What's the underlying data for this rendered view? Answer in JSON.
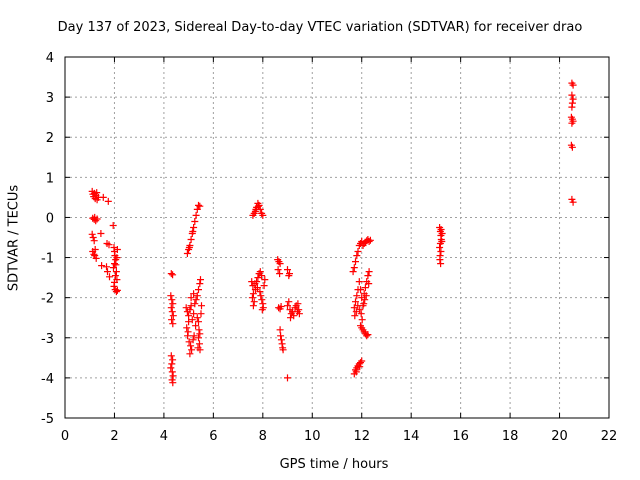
{
  "chart_data": {
    "type": "scatter",
    "title": "Day 137 of 2023, Sidereal Day-to-day VTEC variation (SDTVAR) for receiver drao",
    "xlabel": "GPS time / hours",
    "ylabel": "SDTVAR / TECUs",
    "xlim": [
      0,
      22
    ],
    "ylim": [
      -5,
      4
    ],
    "xticks": [
      "0",
      "2",
      "4",
      "6",
      "8",
      "10",
      "12",
      "14",
      "16",
      "18",
      "20",
      "22"
    ],
    "yticks": [
      "-5",
      "-4",
      "-3",
      "-2",
      "-1",
      "0",
      "1",
      "2",
      "3",
      "4"
    ],
    "grid": true,
    "marker": "+",
    "color": "#ff0000",
    "series": [
      {
        "name": "SDTVAR",
        "points": [
          [
            1.1,
            0.65
          ],
          [
            1.13,
            0.58
          ],
          [
            1.16,
            0.52
          ],
          [
            1.19,
            0.6
          ],
          [
            1.22,
            0.47
          ],
          [
            1.25,
            0.55
          ],
          [
            1.28,
            0.62
          ],
          [
            1.3,
            0.44
          ],
          [
            1.35,
            0.5
          ],
          [
            1.12,
            -0.02
          ],
          [
            1.18,
            -0.05
          ],
          [
            1.24,
            -0.08
          ],
          [
            1.3,
            -0.04
          ],
          [
            1.2,
            0.0
          ],
          [
            1.1,
            -0.42
          ],
          [
            1.14,
            -0.5
          ],
          [
            1.18,
            -0.58
          ],
          [
            1.12,
            -0.85
          ],
          [
            1.17,
            -0.92
          ],
          [
            1.22,
            -0.8
          ],
          [
            1.26,
            -1.02
          ],
          [
            1.2,
            -0.95
          ],
          [
            1.45,
            -0.4
          ],
          [
            1.55,
            0.5
          ],
          [
            1.48,
            -1.2
          ],
          [
            1.68,
            -1.23
          ],
          [
            1.75,
            0.4
          ],
          [
            1.7,
            -0.65
          ],
          [
            1.78,
            -0.68
          ],
          [
            1.72,
            -1.35
          ],
          [
            1.8,
            -1.48
          ],
          [
            1.95,
            -0.2
          ],
          [
            1.98,
            -0.75
          ],
          [
            2.0,
            -0.85
          ],
          [
            2.02,
            -0.95
          ],
          [
            2.05,
            -1.05
          ],
          [
            2.0,
            -1.15
          ],
          [
            1.96,
            -1.25
          ],
          [
            2.08,
            -1.35
          ],
          [
            2.04,
            -1.45
          ],
          [
            2.1,
            -1.55
          ],
          [
            2.0,
            -1.62
          ],
          [
            1.98,
            -1.72
          ],
          [
            2.03,
            -1.8
          ],
          [
            2.08,
            -1.85
          ],
          [
            2.12,
            -1.82
          ],
          [
            2.06,
            -1.18
          ],
          [
            2.1,
            -1.0
          ],
          [
            2.12,
            -0.8
          ],
          [
            4.3,
            -1.4
          ],
          [
            4.35,
            -1.43
          ],
          [
            4.28,
            -1.95
          ],
          [
            4.32,
            -2.05
          ],
          [
            4.36,
            -2.15
          ],
          [
            4.3,
            -2.25
          ],
          [
            4.34,
            -2.35
          ],
          [
            4.38,
            -2.45
          ],
          [
            4.31,
            -2.55
          ],
          [
            4.36,
            -2.65
          ],
          [
            4.3,
            -3.45
          ],
          [
            4.35,
            -3.55
          ],
          [
            4.32,
            -3.65
          ],
          [
            4.28,
            -3.75
          ],
          [
            4.34,
            -3.85
          ],
          [
            4.37,
            -3.95
          ],
          [
            4.33,
            -4.05
          ],
          [
            4.36,
            -4.12
          ],
          [
            4.95,
            -0.9
          ],
          [
            5.0,
            -0.8
          ],
          [
            5.05,
            -0.7
          ],
          [
            5.1,
            -0.55
          ],
          [
            5.15,
            -0.4
          ],
          [
            5.2,
            -0.25
          ],
          [
            5.25,
            -0.1
          ],
          [
            5.3,
            0.05
          ],
          [
            5.35,
            0.2
          ],
          [
            5.4,
            0.3
          ],
          [
            5.45,
            0.28
          ],
          [
            5.03,
            -0.75
          ],
          [
            5.17,
            -0.35
          ],
          [
            4.9,
            -2.25
          ],
          [
            4.95,
            -2.35
          ],
          [
            5.0,
            -2.45
          ],
          [
            5.05,
            -2.3
          ],
          [
            5.1,
            -2.2
          ],
          [
            5.15,
            -2.55
          ],
          [
            5.2,
            -2.4
          ],
          [
            5.25,
            -2.15
          ],
          [
            5.3,
            -2.05
          ],
          [
            5.35,
            -1.95
          ],
          [
            5.4,
            -1.8
          ],
          [
            5.45,
            -1.65
          ],
          [
            5.48,
            -1.55
          ],
          [
            4.92,
            -2.75
          ],
          [
            4.98,
            -2.85
          ],
          [
            5.02,
            -3.1
          ],
          [
            5.08,
            -3.2
          ],
          [
            5.12,
            -3.3
          ],
          [
            5.05,
            -3.4
          ],
          [
            5.18,
            -3.05
          ],
          [
            5.22,
            -2.95
          ],
          [
            5.28,
            -2.7
          ],
          [
            5.35,
            -2.5
          ],
          [
            5.4,
            -2.6
          ],
          [
            5.42,
            -2.8
          ],
          [
            5.45,
            -2.9
          ],
          [
            5.4,
            -3.0
          ],
          [
            5.44,
            -3.15
          ],
          [
            5.46,
            -3.3
          ],
          [
            5.38,
            -3.25
          ],
          [
            5.5,
            -2.4
          ],
          [
            5.52,
            -2.2
          ],
          [
            5.1,
            -2.0
          ],
          [
            5.2,
            -1.9
          ],
          [
            5.0,
            -2.6
          ],
          [
            4.96,
            -2.95
          ],
          [
            7.6,
            0.05
          ],
          [
            7.65,
            0.1
          ],
          [
            7.7,
            0.15
          ],
          [
            7.75,
            0.25
          ],
          [
            7.8,
            0.35
          ],
          [
            7.85,
            0.3
          ],
          [
            7.9,
            0.2
          ],
          [
            7.95,
            0.1
          ],
          [
            8.0,
            0.05
          ],
          [
            7.82,
            0.28
          ],
          [
            7.72,
            0.2
          ],
          [
            7.55,
            -1.6
          ],
          [
            7.6,
            -1.7
          ],
          [
            7.62,
            -1.9
          ],
          [
            7.58,
            -2.0
          ],
          [
            7.65,
            -2.1
          ],
          [
            7.7,
            -1.8
          ],
          [
            7.75,
            -1.6
          ],
          [
            7.8,
            -1.5
          ],
          [
            7.85,
            -1.4
          ],
          [
            7.9,
            -1.35
          ],
          [
            7.95,
            -1.45
          ],
          [
            7.78,
            -1.75
          ],
          [
            7.88,
            -1.85
          ],
          [
            7.92,
            -1.95
          ],
          [
            7.96,
            -2.05
          ],
          [
            8.0,
            -2.15
          ],
          [
            8.02,
            -2.25
          ],
          [
            7.98,
            -2.3
          ],
          [
            8.05,
            -1.7
          ],
          [
            8.08,
            -1.55
          ],
          [
            7.68,
            -1.65
          ],
          [
            7.62,
            -2.2
          ],
          [
            8.6,
            -1.05
          ],
          [
            8.65,
            -1.1
          ],
          [
            8.62,
            -1.3
          ],
          [
            8.68,
            -1.4
          ],
          [
            8.7,
            -1.15
          ],
          [
            8.64,
            -2.25
          ],
          [
            8.7,
            -2.28
          ],
          [
            8.74,
            -2.22
          ],
          [
            8.7,
            -2.8
          ],
          [
            8.72,
            -2.95
          ],
          [
            8.75,
            -3.05
          ],
          [
            8.78,
            -3.15
          ],
          [
            8.8,
            -3.25
          ],
          [
            8.82,
            -3.3
          ],
          [
            9.0,
            -1.3
          ],
          [
            9.05,
            -1.45
          ],
          [
            9.08,
            -1.4
          ],
          [
            9.0,
            -2.2
          ],
          [
            9.05,
            -2.1
          ],
          [
            9.1,
            -2.3
          ],
          [
            9.15,
            -2.4
          ],
          [
            9.2,
            -2.35
          ],
          [
            9.25,
            -2.45
          ],
          [
            9.3,
            -2.25
          ],
          [
            9.35,
            -2.2
          ],
          [
            9.4,
            -2.35
          ],
          [
            9.45,
            -2.3
          ],
          [
            9.42,
            -2.15
          ],
          [
            9.48,
            -2.4
          ],
          [
            9.12,
            -2.5
          ],
          [
            9.0,
            -4.0
          ],
          [
            11.65,
            -1.35
          ],
          [
            11.7,
            -1.25
          ],
          [
            11.75,
            -1.1
          ],
          [
            11.8,
            -0.95
          ],
          [
            11.85,
            -0.85
          ],
          [
            11.9,
            -0.7
          ],
          [
            11.95,
            -0.65
          ],
          [
            12.0,
            -0.6
          ],
          [
            12.05,
            -0.7
          ],
          [
            12.1,
            -0.65
          ],
          [
            12.15,
            -0.62
          ],
          [
            12.2,
            -0.58
          ],
          [
            12.25,
            -0.55
          ],
          [
            12.3,
            -0.6
          ],
          [
            12.35,
            -0.57
          ],
          [
            11.7,
            -2.25
          ],
          [
            11.75,
            -2.1
          ],
          [
            11.8,
            -1.95
          ],
          [
            11.85,
            -1.8
          ],
          [
            11.9,
            -1.6
          ],
          [
            11.95,
            -1.8
          ],
          [
            12.0,
            -2.0
          ],
          [
            12.05,
            -2.2
          ],
          [
            11.72,
            -2.45
          ],
          [
            11.78,
            -2.35
          ],
          [
            11.84,
            -2.2
          ],
          [
            11.92,
            -2.3
          ],
          [
            11.98,
            -2.4
          ],
          [
            12.1,
            -1.9
          ],
          [
            12.15,
            -1.75
          ],
          [
            12.2,
            -1.6
          ],
          [
            12.25,
            -1.45
          ],
          [
            12.3,
            -1.35
          ],
          [
            12.08,
            -2.15
          ],
          [
            12.18,
            -1.95
          ],
          [
            12.28,
            -1.65
          ],
          [
            12.02,
            -2.55
          ],
          [
            12.12,
            -2.05
          ],
          [
            11.95,
            -2.7
          ],
          [
            12.0,
            -2.75
          ],
          [
            12.05,
            -2.8
          ],
          [
            12.1,
            -2.85
          ],
          [
            12.15,
            -2.9
          ],
          [
            12.2,
            -2.95
          ],
          [
            12.25,
            -2.92
          ],
          [
            11.7,
            -3.9
          ],
          [
            11.75,
            -3.8
          ],
          [
            11.8,
            -3.75
          ],
          [
            11.85,
            -3.7
          ],
          [
            11.9,
            -3.65
          ],
          [
            11.95,
            -3.62
          ],
          [
            12.0,
            -3.58
          ],
          [
            11.78,
            -3.85
          ],
          [
            11.92,
            -3.72
          ],
          [
            15.15,
            -0.25
          ],
          [
            15.18,
            -0.35
          ],
          [
            15.2,
            -0.45
          ],
          [
            15.22,
            -0.55
          ],
          [
            15.18,
            -0.65
          ],
          [
            15.15,
            -0.75
          ],
          [
            15.2,
            -0.85
          ],
          [
            15.17,
            -0.95
          ],
          [
            15.16,
            -1.05
          ],
          [
            15.19,
            -1.15
          ],
          [
            15.25,
            -0.4
          ],
          [
            15.24,
            -0.6
          ],
          [
            15.21,
            -0.3
          ],
          [
            20.5,
            3.35
          ],
          [
            20.55,
            3.3
          ],
          [
            20.5,
            3.05
          ],
          [
            20.55,
            2.95
          ],
          [
            20.52,
            2.85
          ],
          [
            20.5,
            2.75
          ],
          [
            20.48,
            2.5
          ],
          [
            20.52,
            2.45
          ],
          [
            20.55,
            2.4
          ],
          [
            20.5,
            2.35
          ],
          [
            20.48,
            1.8
          ],
          [
            20.52,
            1.75
          ],
          [
            20.5,
            0.45
          ],
          [
            20.55,
            0.38
          ]
        ]
      }
    ]
  }
}
